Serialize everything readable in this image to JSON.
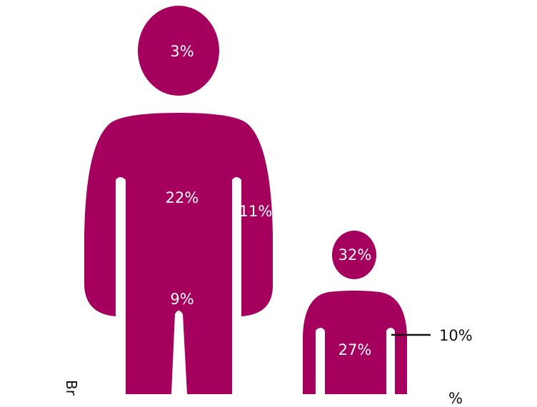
{
  "colors": {
    "figure": "#A6005E",
    "text_on_figure": "#FFFFFF",
    "leader_line": "#111111"
  },
  "adult": {
    "head": "3%",
    "torso": "22%",
    "arm": "11%",
    "legs": "9%"
  },
  "child": {
    "head": "32%",
    "torso": "27%",
    "arm": "10%",
    "partial_label": "%"
  },
  "side_text": "Br"
}
